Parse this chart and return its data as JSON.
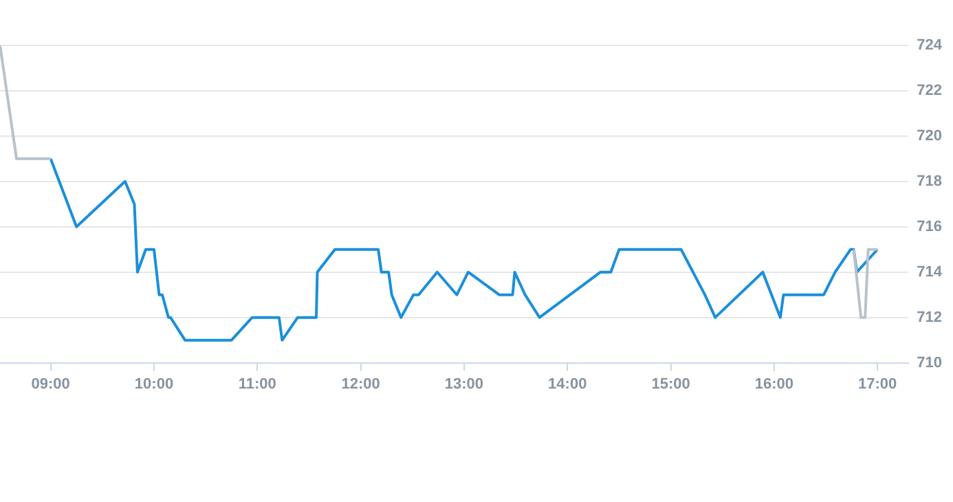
{
  "chart_data": {
    "type": "line",
    "series": [
      {
        "color": "#b8c2cc",
        "x": [
          8.51,
          8.67,
          9.0
        ],
        "values": [
          724,
          719,
          719
        ]
      },
      {
        "color": "#b8c2cc",
        "x": [
          16.77,
          16.84,
          16.88,
          16.91,
          17.0
        ],
        "values": [
          715,
          712,
          712,
          715,
          715
        ]
      },
      {
        "color": "#1a8fdb",
        "x": [
          9.0,
          9.25,
          9.72,
          9.81,
          9.84,
          9.92,
          10.0,
          10.05,
          10.08,
          10.14,
          10.16,
          10.3,
          10.75,
          10.95,
          11.21,
          11.24,
          11.39,
          11.57,
          11.58,
          11.75,
          12.17,
          12.2,
          12.27,
          12.3,
          12.39,
          12.51,
          12.56,
          12.74,
          12.93,
          13.04,
          13.34,
          13.47,
          13.49,
          13.59,
          13.73,
          14.32,
          14.42,
          14.5,
          15.1,
          15.33,
          15.43,
          15.89,
          16.06,
          16.09,
          16.48,
          16.59,
          16.74,
          16.77,
          16.8,
          17.0
        ],
        "values": [
          719,
          716,
          718,
          717,
          714,
          715,
          715,
          713,
          713,
          712,
          712,
          711,
          711,
          712,
          712,
          711,
          712,
          712,
          714,
          715,
          715,
          714,
          714,
          713,
          712,
          713,
          713,
          714,
          713,
          714,
          713,
          713,
          714,
          713,
          712,
          714,
          714,
          715,
          715,
          713,
          712,
          714,
          712,
          713,
          713,
          714,
          715,
          715,
          714,
          715
        ]
      }
    ],
    "xlim": [
      8.51,
      17.3
    ],
    "xticks": [
      {
        "value": 9,
        "label": "09:00"
      },
      {
        "value": 10,
        "label": "10:00"
      },
      {
        "value": 11,
        "label": "11:00"
      },
      {
        "value": 12,
        "label": "12:00"
      },
      {
        "value": 13,
        "label": "13:00"
      },
      {
        "value": 14,
        "label": "14:00"
      },
      {
        "value": 15,
        "label": "15:00"
      },
      {
        "value": 16,
        "label": "16:00"
      },
      {
        "value": 17,
        "label": "17:00"
      }
    ],
    "ylim": [
      710,
      724
    ],
    "yticks": [
      710,
      712,
      714,
      716,
      718,
      720,
      722,
      724
    ],
    "grid": "y",
    "legend": false,
    "marker": "none",
    "line_style": "solid"
  }
}
